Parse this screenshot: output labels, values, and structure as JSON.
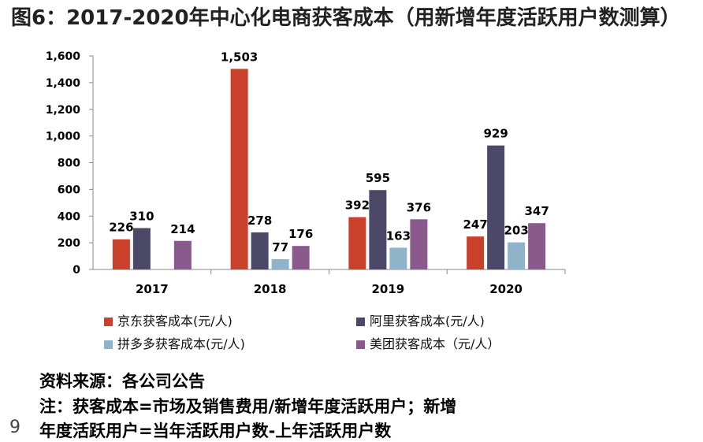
{
  "title": "图6：2017-2020年中心化电商获客成本（用新增年度活跃用户数测算）",
  "chart_data": {
    "type": "bar",
    "categories": [
      "2017",
      "2018",
      "2019",
      "2020"
    ],
    "series": [
      {
        "name": "京东获客成本(元/人)",
        "color": "#c9412a",
        "values": [
          226,
          1503,
          392,
          247
        ],
        "labels": [
          "226",
          "1,503",
          "392",
          "247"
        ]
      },
      {
        "name": "阿里获客成本(元/人)",
        "color": "#4b4868",
        "values": [
          310,
          278,
          595,
          929
        ],
        "labels": [
          "310",
          "278",
          "595",
          "929"
        ]
      },
      {
        "name": "拼多多获客成本(元/人)",
        "color": "#8fb3c8",
        "values": [
          null,
          77,
          163,
          203
        ],
        "labels": [
          "",
          "77",
          "163",
          "203"
        ]
      },
      {
        "name": "美团获客成本（元/人）",
        "color": "#8a5a8c",
        "values": [
          214,
          176,
          376,
          347
        ],
        "labels": [
          "214",
          "176",
          "376",
          "347"
        ]
      }
    ],
    "ylim": [
      0,
      1600
    ],
    "yticks": [
      0,
      200,
      400,
      600,
      800,
      1000,
      1200,
      1400,
      1600
    ],
    "ytick_labels": [
      "0",
      "200",
      "400",
      "600",
      "800",
      "1,000",
      "1,200",
      "1,400",
      "1,600"
    ],
    "legend_position": "bottom"
  },
  "notes": {
    "source": "资料来源：各公司公告",
    "note_line1": "注：获客成本=市场及销售费用/新增年度活跃用户；新增",
    "note_line2": "年度活跃用户=当年活跃用户数-上年活跃用户数"
  },
  "page_number": "9"
}
